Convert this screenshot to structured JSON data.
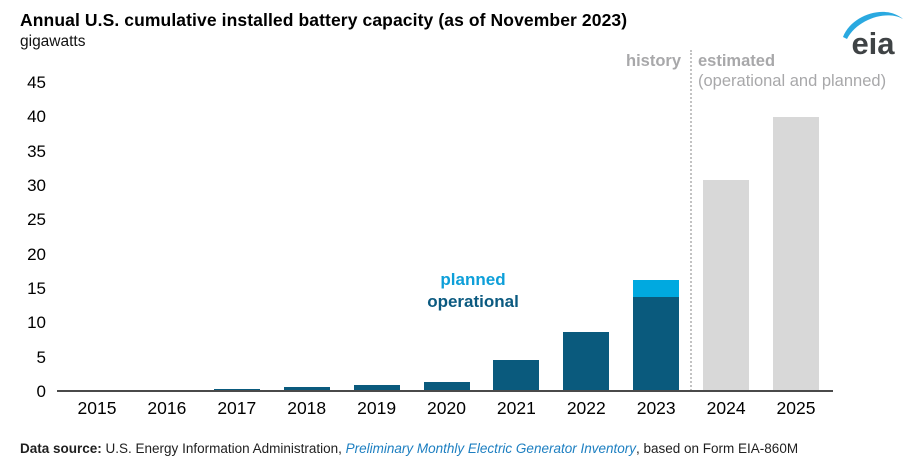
{
  "header": {
    "title": "Annual U.S. cumulative installed battery capacity (as of November 2023)",
    "unit_label": "gigawatts"
  },
  "logo": {
    "text": "eia"
  },
  "annotations": {
    "history_label": "history",
    "estimated_label": "estimated",
    "estimated_sublabel": "(operational and planned)",
    "planned_label": "planned",
    "operational_label": "operational"
  },
  "footer": {
    "prefix_bold": "Data source:",
    "text_before_link": " U.S. Energy Information Administration, ",
    "link_text": "Preliminary Monthly Electric Generator Inventory",
    "text_after_link": ", based on Form EIA-860M"
  },
  "colors": {
    "operational": "#0a5a7d",
    "planned": "#00a9e0",
    "estimated": "#d8d8d8",
    "axis_line": "#4a4a4a",
    "gray_text": "#a8a8aa",
    "link_blue": "#1d7fc1",
    "planned_text": "#0d9fd9",
    "operational_text": "#0b5a80"
  },
  "chart_data": {
    "type": "bar",
    "stacked": true,
    "title": "Annual U.S. cumulative installed battery capacity (as of November 2023)",
    "ylabel": "gigawatts",
    "xlabel": "",
    "ylim": [
      0,
      45
    ],
    "yticks": [
      0,
      5,
      10,
      15,
      20,
      25,
      30,
      35,
      40,
      45
    ],
    "grid": false,
    "legend_position": "inline-annotations",
    "categories": [
      "2015",
      "2016",
      "2017",
      "2018",
      "2019",
      "2020",
      "2021",
      "2022",
      "2023",
      "2024",
      "2025"
    ],
    "series": [
      {
        "name": "operational",
        "color_key": "operational",
        "values": [
          0.2,
          0.3,
          0.5,
          0.7,
          1.0,
          1.4,
          4.6,
          8.8,
          13.9,
          0,
          0
        ]
      },
      {
        "name": "planned",
        "color_key": "planned",
        "values": [
          0,
          0,
          0,
          0,
          0,
          0,
          0,
          0,
          2.4,
          0,
          0
        ]
      },
      {
        "name": "estimated (operational and planned)",
        "color_key": "estimated",
        "values": [
          0,
          0,
          0,
          0,
          0,
          0,
          0,
          0,
          0,
          30.9,
          40.1
        ]
      }
    ],
    "regions": {
      "history_years": [
        "2015",
        "2023"
      ],
      "estimated_years": [
        "2024",
        "2025"
      ]
    }
  }
}
